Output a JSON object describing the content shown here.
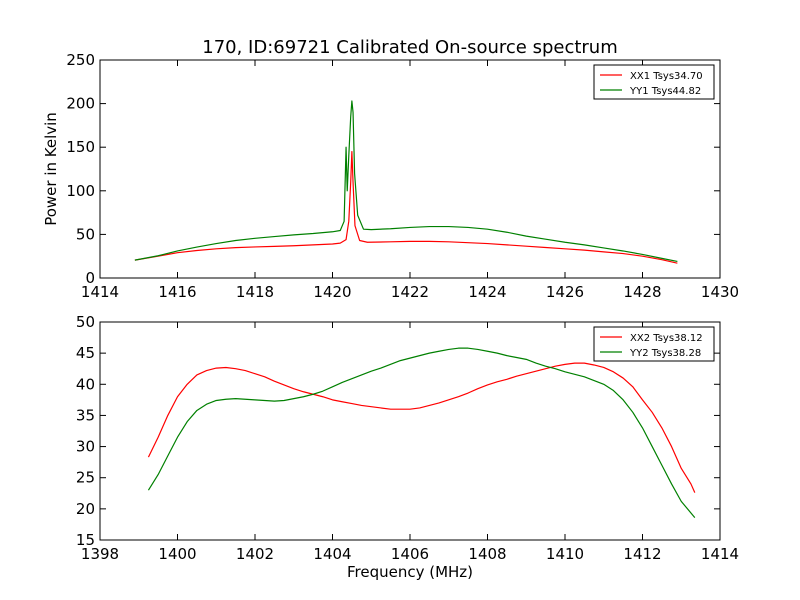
{
  "chart_data": [
    {
      "type": "line",
      "title": "170, ID:69721 Calibrated On-source spectrum",
      "xlabel": "",
      "ylabel": "Power in Kelvin",
      "xlim": [
        1414,
        1430
      ],
      "ylim": [
        0,
        250
      ],
      "xticks": [
        "1414",
        "1416",
        "1418",
        "1420",
        "1422",
        "1424",
        "1426",
        "1428",
        "1430"
      ],
      "yticks": [
        "0",
        "50",
        "100",
        "150",
        "200",
        "250"
      ],
      "legend_position": "top-right",
      "grid": false,
      "series": [
        {
          "name": "XX1 Tsys34.70",
          "color": "#ff0000",
          "points": [
            [
              1414.9,
              20.5
            ],
            [
              1415.5,
              25
            ],
            [
              1416,
              29
            ],
            [
              1416.5,
              31.5
            ],
            [
              1417,
              33.5
            ],
            [
              1417.5,
              34.8
            ],
            [
              1418,
              35.6
            ],
            [
              1418.5,
              36.3
            ],
            [
              1419,
              37
            ],
            [
              1419.5,
              38
            ],
            [
              1420,
              39
            ],
            [
              1420.2,
              40
            ],
            [
              1420.35,
              44
            ],
            [
              1420.42,
              65
            ],
            [
              1420.47,
              110
            ],
            [
              1420.5,
              145
            ],
            [
              1420.53,
              110
            ],
            [
              1420.58,
              60
            ],
            [
              1420.7,
              43
            ],
            [
              1420.9,
              41
            ],
            [
              1421.5,
              41.5
            ],
            [
              1422,
              42
            ],
            [
              1422.5,
              42
            ],
            [
              1423,
              41.5
            ],
            [
              1423.5,
              40.5
            ],
            [
              1424,
              39.5
            ],
            [
              1424.5,
              38
            ],
            [
              1425,
              36.5
            ],
            [
              1425.5,
              35
            ],
            [
              1426,
              33.5
            ],
            [
              1426.5,
              32
            ],
            [
              1427,
              30
            ],
            [
              1427.5,
              28
            ],
            [
              1428,
              25
            ],
            [
              1428.5,
              21
            ],
            [
              1428.9,
              17
            ]
          ]
        },
        {
          "name": "YY1 Tsys44.82",
          "color": "#008000",
          "points": [
            [
              1414.9,
              20.5
            ],
            [
              1415.5,
              25.5
            ],
            [
              1416,
              31
            ],
            [
              1416.5,
              35.5
            ],
            [
              1417,
              39.5
            ],
            [
              1417.5,
              43
            ],
            [
              1418,
              45.5
            ],
            [
              1418.5,
              47.5
            ],
            [
              1419,
              49.5
            ],
            [
              1419.5,
              51
            ],
            [
              1420,
              53
            ],
            [
              1420.2,
              54.5
            ],
            [
              1420.3,
              65
            ],
            [
              1420.35,
              150
            ],
            [
              1420.38,
              100
            ],
            [
              1420.42,
              140
            ],
            [
              1420.47,
              185
            ],
            [
              1420.5,
              203
            ],
            [
              1420.53,
              190
            ],
            [
              1420.57,
              120
            ],
            [
              1420.65,
              72
            ],
            [
              1420.8,
              56
            ],
            [
              1421,
              55.5
            ],
            [
              1421.5,
              56.5
            ],
            [
              1422,
              58
            ],
            [
              1422.5,
              59
            ],
            [
              1423,
              59
            ],
            [
              1423.5,
              58
            ],
            [
              1424,
              56
            ],
            [
              1424.5,
              52.5
            ],
            [
              1425,
              48
            ],
            [
              1425.5,
              44.5
            ],
            [
              1426,
              41
            ],
            [
              1426.5,
              38
            ],
            [
              1427,
              34.5
            ],
            [
              1427.5,
              31
            ],
            [
              1428,
              27
            ],
            [
              1428.5,
              22.5
            ],
            [
              1428.9,
              19
            ]
          ]
        }
      ]
    },
    {
      "type": "line",
      "title": "",
      "xlabel": "Frequency (MHz)",
      "ylabel": "",
      "xlim": [
        1398,
        1414
      ],
      "ylim": [
        15,
        50
      ],
      "xticks": [
        "1398",
        "1400",
        "1402",
        "1404",
        "1406",
        "1408",
        "1410",
        "1412",
        "1414"
      ],
      "yticks": [
        "15",
        "20",
        "25",
        "30",
        "35",
        "40",
        "45",
        "50"
      ],
      "legend_position": "top-right",
      "grid": false,
      "series": [
        {
          "name": "XX2 Tsys38.12",
          "color": "#ff0000",
          "points": [
            [
              1399.25,
              28.3
            ],
            [
              1399.5,
              31.5
            ],
            [
              1399.75,
              35
            ],
            [
              1400,
              38
            ],
            [
              1400.25,
              40
            ],
            [
              1400.5,
              41.5
            ],
            [
              1400.75,
              42.2
            ],
            [
              1401,
              42.6
            ],
            [
              1401.25,
              42.7
            ],
            [
              1401.5,
              42.5
            ],
            [
              1401.75,
              42.2
            ],
            [
              1402,
              41.7
            ],
            [
              1402.25,
              41.2
            ],
            [
              1402.5,
              40.5
            ],
            [
              1402.75,
              39.9
            ],
            [
              1403,
              39.3
            ],
            [
              1403.25,
              38.8
            ],
            [
              1403.5,
              38.4
            ],
            [
              1403.75,
              38
            ],
            [
              1404,
              37.5
            ],
            [
              1404.25,
              37.2
            ],
            [
              1404.5,
              36.9
            ],
            [
              1404.75,
              36.6
            ],
            [
              1405,
              36.4
            ],
            [
              1405.25,
              36.2
            ],
            [
              1405.5,
              36
            ],
            [
              1405.75,
              36
            ],
            [
              1406,
              36
            ],
            [
              1406.25,
              36.2
            ],
            [
              1406.5,
              36.6
            ],
            [
              1406.75,
              37
            ],
            [
              1407,
              37.5
            ],
            [
              1407.25,
              38
            ],
            [
              1407.5,
              38.6
            ],
            [
              1407.75,
              39.3
            ],
            [
              1408,
              39.9
            ],
            [
              1408.25,
              40.4
            ],
            [
              1408.5,
              40.8
            ],
            [
              1408.75,
              41.3
            ],
            [
              1409,
              41.7
            ],
            [
              1409.25,
              42.1
            ],
            [
              1409.5,
              42.5
            ],
            [
              1409.75,
              42.9
            ],
            [
              1410,
              43.2
            ],
            [
              1410.25,
              43.4
            ],
            [
              1410.5,
              43.4
            ],
            [
              1410.75,
              43.1
            ],
            [
              1411,
              42.7
            ],
            [
              1411.25,
              42
            ],
            [
              1411.5,
              41
            ],
            [
              1411.75,
              39.6
            ],
            [
              1412,
              37.5
            ],
            [
              1412.25,
              35.5
            ],
            [
              1412.5,
              33
            ],
            [
              1412.75,
              30
            ],
            [
              1413,
              26.5
            ],
            [
              1413.25,
              24
            ],
            [
              1413.35,
              22.6
            ]
          ]
        },
        {
          "name": "YY2 Tsys38.28",
          "color": "#008000",
          "points": [
            [
              1399.25,
              23
            ],
            [
              1399.5,
              25.5
            ],
            [
              1399.75,
              28.5
            ],
            [
              1400,
              31.5
            ],
            [
              1400.25,
              34
            ],
            [
              1400.5,
              35.8
            ],
            [
              1400.75,
              36.8
            ],
            [
              1401,
              37.4
            ],
            [
              1401.25,
              37.6
            ],
            [
              1401.5,
              37.7
            ],
            [
              1401.75,
              37.6
            ],
            [
              1402,
              37.5
            ],
            [
              1402.25,
              37.4
            ],
            [
              1402.5,
              37.3
            ],
            [
              1402.75,
              37.4
            ],
            [
              1403,
              37.7
            ],
            [
              1403.25,
              38
            ],
            [
              1403.5,
              38.4
            ],
            [
              1403.75,
              38.9
            ],
            [
              1404,
              39.6
            ],
            [
              1404.25,
              40.3
            ],
            [
              1404.5,
              40.9
            ],
            [
              1404.75,
              41.5
            ],
            [
              1405,
              42.1
            ],
            [
              1405.25,
              42.6
            ],
            [
              1405.5,
              43.2
            ],
            [
              1405.75,
              43.8
            ],
            [
              1406,
              44.2
            ],
            [
              1406.25,
              44.6
            ],
            [
              1406.5,
              45
            ],
            [
              1406.75,
              45.3
            ],
            [
              1407,
              45.6
            ],
            [
              1407.25,
              45.8
            ],
            [
              1407.5,
              45.8
            ],
            [
              1407.75,
              45.6
            ],
            [
              1408,
              45.3
            ],
            [
              1408.25,
              45
            ],
            [
              1408.5,
              44.6
            ],
            [
              1408.75,
              44.3
            ],
            [
              1409,
              44
            ],
            [
              1409.25,
              43.4
            ],
            [
              1409.5,
              42.9
            ],
            [
              1409.75,
              42.5
            ],
            [
              1410,
              42
            ],
            [
              1410.25,
              41.6
            ],
            [
              1410.5,
              41.2
            ],
            [
              1410.75,
              40.6
            ],
            [
              1411,
              40
            ],
            [
              1411.25,
              39
            ],
            [
              1411.5,
              37.5
            ],
            [
              1411.75,
              35.5
            ],
            [
              1412,
              33
            ],
            [
              1412.25,
              30
            ],
            [
              1412.5,
              27
            ],
            [
              1412.75,
              24
            ],
            [
              1413,
              21.2
            ],
            [
              1413.35,
              18.6
            ]
          ]
        }
      ]
    }
  ]
}
